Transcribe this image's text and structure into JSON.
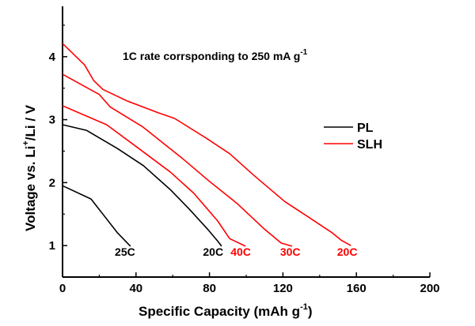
{
  "chart_data": {
    "type": "line",
    "title": "",
    "annotation": "1C rate corrsponding to 250 mA g",
    "annotation_superscript": "-1",
    "xlabel": "Specific Capacity (mAh g",
    "xlabel_superscript": "-1",
    "xlabel_suffix": ")",
    "ylabel_parts": [
      "Voltage vs. Li",
      "+",
      "/Li / V"
    ],
    "xlim": [
      0,
      200
    ],
    "ylim": [
      0.5,
      4.8
    ],
    "x_ticks": [
      0,
      40,
      80,
      120,
      160,
      200
    ],
    "x_tick_labels": [
      "0",
      "40",
      "80",
      "120",
      "160",
      "200"
    ],
    "x_minor_ticks": [
      20,
      60,
      100,
      140,
      180
    ],
    "y_ticks": [
      1,
      2,
      3,
      4
    ],
    "y_tick_labels": [
      "1",
      "2",
      "3",
      "4"
    ],
    "y_minor_ticks": [
      1.5,
      2.5,
      3.5,
      4.5
    ],
    "grid": false,
    "legend_position": "right",
    "legend": [
      {
        "name": "PL",
        "color": "#000000"
      },
      {
        "name": "SLH",
        "color": "#ff0000"
      }
    ],
    "series": [
      {
        "name": "PL 25C",
        "group": "PL",
        "label": "25C",
        "color": "#000000",
        "x": [
          0,
          15.5,
          30,
          37
        ],
        "y": [
          1.95,
          1.74,
          1.2,
          0.99
        ]
      },
      {
        "name": "PL 20C",
        "group": "PL",
        "label": "20C",
        "color": "#000000",
        "x": [
          0,
          13,
          30,
          44,
          58.6,
          69,
          79,
          84.5,
          86.6
        ],
        "y": [
          2.92,
          2.83,
          2.54,
          2.27,
          1.89,
          1.58,
          1.26,
          1.07,
          0.99
        ]
      },
      {
        "name": "SLH 40C",
        "group": "SLH",
        "label": "40C",
        "color": "#ff0000",
        "x": [
          0,
          24,
          37,
          58.6,
          71.5,
          84.5,
          91,
          99.6
        ],
        "y": [
          3.22,
          2.92,
          2.64,
          2.17,
          1.83,
          1.39,
          1.11,
          0.99
        ]
      },
      {
        "name": "SLH 30C",
        "group": "SLH",
        "label": "30C",
        "color": "#ff0000",
        "x": [
          0,
          20,
          26,
          43.5,
          65,
          80,
          95,
          110,
          119,
          125
        ],
        "y": [
          3.72,
          3.4,
          3.2,
          2.89,
          2.39,
          2.02,
          1.67,
          1.26,
          1.04,
          0.99
        ]
      },
      {
        "name": "SLH 20C",
        "group": "SLH",
        "label": "20C",
        "color": "#ff0000",
        "x": [
          0,
          12,
          17,
          22,
          35,
          52,
          61,
          78,
          91,
          104,
          121,
          134,
          147,
          152,
          157
        ],
        "y": [
          4.21,
          3.87,
          3.62,
          3.48,
          3.3,
          3.11,
          3.02,
          2.71,
          2.46,
          2.12,
          1.7,
          1.45,
          1.2,
          1.08,
          1.0
        ]
      }
    ],
    "curve_labels": [
      {
        "text": "25C",
        "color": "#000000",
        "x": 34,
        "y": 0.9
      },
      {
        "text": "20C",
        "color": "#000000",
        "x": 82,
        "y": 0.9
      },
      {
        "text": "40C",
        "color": "#ff0000",
        "x": 97,
        "y": 0.9
      },
      {
        "text": "30C",
        "color": "#ff0000",
        "x": 124,
        "y": 0.9
      },
      {
        "text": "20C",
        "color": "#ff0000",
        "x": 155,
        "y": 0.9
      }
    ]
  }
}
